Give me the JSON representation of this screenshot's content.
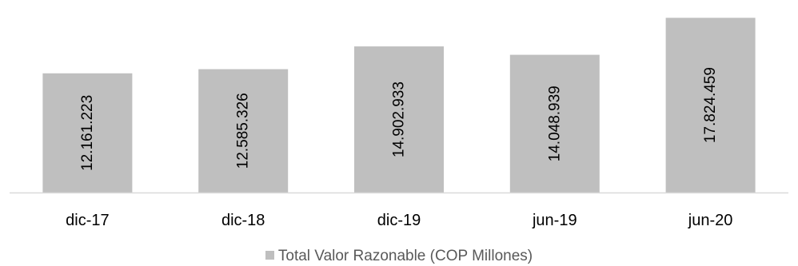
{
  "chart_data": {
    "type": "bar",
    "categories": [
      "dic-17",
      "dic-18",
      "dic-19",
      "jun-19",
      "jun-20"
    ],
    "series": [
      {
        "name": "Total Valor Razonable (COP Millones)",
        "values": [
          12161223,
          12585326,
          14902933,
          14048939,
          17824459
        ],
        "labels": [
          "12.161.223",
          "12.585.326",
          "14.902.933",
          "14.048.939",
          "17.824.459"
        ],
        "color": "#bfbfbf"
      }
    ],
    "title": "",
    "xlabel": "",
    "ylabel": "",
    "ylim": [
      0,
      18500000
    ],
    "grid": false,
    "legend_position": "bottom",
    "axis_color": "#d9d9d9"
  }
}
